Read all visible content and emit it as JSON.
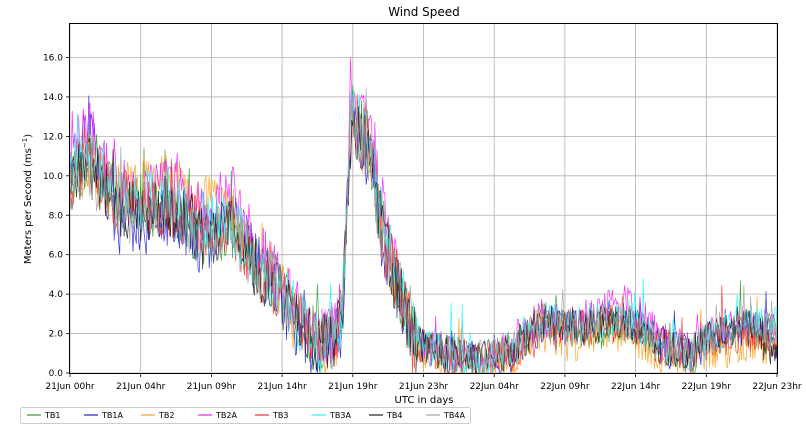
{
  "chart_data": {
    "type": "line",
    "title": "Wind Speed",
    "xlabel": "UTC in days",
    "ylabel": "Meters per Second (ms",
    "ylabel_sup": "−1",
    "ylabel_close": ")",
    "ylim": [
      0,
      17.7
    ],
    "grid": true,
    "legend_placement": "bottom-left",
    "x_tick_labels": [
      "21Jun 00hr",
      "21Jun 04hr",
      "21Jun 09hr",
      "21Jun 14hr",
      "21Jun 19hr",
      "21Jun 23hr",
      "22Jun 04hr",
      "22Jun 09hr",
      "22Jun 14hr",
      "22Jun 19hr",
      "22Jun 23hr"
    ],
    "y_ticks": [
      0.0,
      2.0,
      4.0,
      6.0,
      8.0,
      10.0,
      12.0,
      14.0,
      16.0
    ],
    "y_tick_labels": [
      "0.0",
      "2.0",
      "4.0",
      "6.0",
      "8.0",
      "10.0",
      "12.0",
      "14.0",
      "16.0"
    ],
    "x_profile_hours": [
      0,
      1,
      2,
      3,
      5,
      7,
      9,
      11,
      12.5,
      14,
      15.5,
      17,
      18,
      18.5,
      19,
      19.2,
      19.5,
      20,
      20.5,
      21,
      21.5,
      22,
      22.5,
      23,
      23.5,
      24,
      26,
      28,
      30,
      32,
      34,
      36,
      38,
      40,
      42,
      44,
      46,
      48
    ],
    "series": [
      {
        "name": "TB1",
        "color": "#2ca02c",
        "values": [
          9.5,
          11.5,
          10.8,
          9.0,
          8.5,
          8.2,
          7.0,
          7.2,
          5.5,
          4.5,
          2.5,
          1.5,
          1.8,
          3.0,
          12.0,
          13.0,
          12.5,
          12.0,
          11.0,
          8.0,
          6.5,
          5.2,
          4.0,
          2.8,
          1.8,
          1.4,
          1.0,
          0.6,
          1.2,
          2.6,
          2.2,
          2.3,
          2.5,
          1.5,
          0.8,
          1.8,
          2.2,
          2.0
        ]
      },
      {
        "name": "TB1A",
        "color": "#1f1fdd",
        "values": [
          9.6,
          12.5,
          10.5,
          8.0,
          7.5,
          8.0,
          6.5,
          7.8,
          5.8,
          4.2,
          2.2,
          0.8,
          1.8,
          2.5,
          11.8,
          12.8,
          12.6,
          11.5,
          10.5,
          7.5,
          6.0,
          5.0,
          3.8,
          2.5,
          1.6,
          1.2,
          0.9,
          0.5,
          1.0,
          2.4,
          2.3,
          2.8,
          2.8,
          1.3,
          1.0,
          1.9,
          2.4,
          1.6
        ]
      },
      {
        "name": "TB2",
        "color": "#ff9f1a",
        "values": [
          10.0,
          10.5,
          10.0,
          9.0,
          9.5,
          9.8,
          8.5,
          8.0,
          6.0,
          4.8,
          2.8,
          1.2,
          1.5,
          2.8,
          12.2,
          12.5,
          12.2,
          11.6,
          10.8,
          7.8,
          6.2,
          4.8,
          3.5,
          2.2,
          1.2,
          1.0,
          0.6,
          0.3,
          0.8,
          2.0,
          1.5,
          2.0,
          2.0,
          1.0,
          0.5,
          1.2,
          1.5,
          1.4
        ]
      },
      {
        "name": "TB2A",
        "color": "#ff1aff",
        "values": [
          10.8,
          12.8,
          11.2,
          10.0,
          9.2,
          9.8,
          8.2,
          9.0,
          6.5,
          5.0,
          3.0,
          1.8,
          2.2,
          3.5,
          13.0,
          14.0,
          13.5,
          12.8,
          11.5,
          9.0,
          7.2,
          5.6,
          4.3,
          3.0,
          2.0,
          1.6,
          1.1,
          0.8,
          1.5,
          2.8,
          2.6,
          3.2,
          3.5,
          1.8,
          1.2,
          2.2,
          2.6,
          2.4
        ]
      },
      {
        "name": "TB3",
        "color": "#ff3030",
        "values": [
          9.8,
          11.0,
          10.2,
          8.8,
          8.6,
          8.4,
          7.2,
          7.5,
          5.6,
          4.4,
          2.6,
          1.4,
          1.8,
          2.9,
          12.1,
          12.9,
          12.4,
          11.8,
          10.9,
          7.9,
          6.4,
          5.1,
          3.9,
          2.6,
          1.7,
          1.3,
          0.9,
          0.5,
          1.1,
          2.5,
          2.2,
          2.5,
          2.6,
          1.4,
          0.9,
          1.8,
          2.1,
          1.9
        ]
      },
      {
        "name": "TB3A",
        "color": "#1affff",
        "values": [
          10.2,
          11.2,
          10.4,
          9.2,
          8.8,
          9.0,
          7.4,
          7.6,
          5.9,
          4.6,
          2.7,
          1.6,
          2.0,
          3.1,
          12.3,
          13.2,
          12.8,
          12.1,
          11.1,
          8.2,
          6.6,
          5.3,
          4.1,
          2.8,
          1.9,
          1.5,
          1.0,
          0.6,
          1.3,
          2.7,
          2.5,
          2.6,
          2.7,
          1.6,
          1.0,
          2.0,
          2.5,
          2.4
        ]
      },
      {
        "name": "TB4",
        "color": "#202020",
        "values": [
          9.2,
          10.8,
          9.8,
          8.5,
          8.2,
          8.5,
          6.8,
          7.4,
          5.4,
          4.3,
          2.5,
          1.3,
          1.9,
          3.0,
          11.8,
          12.6,
          12.3,
          11.7,
          10.7,
          7.7,
          6.3,
          5.0,
          3.8,
          2.6,
          1.6,
          1.2,
          0.9,
          0.6,
          1.2,
          2.6,
          2.3,
          2.5,
          2.6,
          1.5,
          1.0,
          2.2,
          2.5,
          1.0
        ]
      },
      {
        "name": "TB4A",
        "color": "#a0a0a0",
        "values": [
          9.4,
          10.9,
          9.9,
          8.6,
          8.3,
          8.6,
          6.9,
          7.5,
          5.5,
          4.4,
          2.6,
          1.4,
          1.9,
          3.0,
          11.9,
          12.7,
          12.4,
          11.8,
          10.8,
          7.8,
          6.4,
          5.1,
          3.9,
          2.7,
          1.7,
          1.3,
          1.0,
          0.6,
          1.2,
          2.6,
          2.3,
          2.5,
          2.6,
          1.5,
          1.0,
          2.1,
          2.4,
          1.9
        ]
      }
    ]
  }
}
